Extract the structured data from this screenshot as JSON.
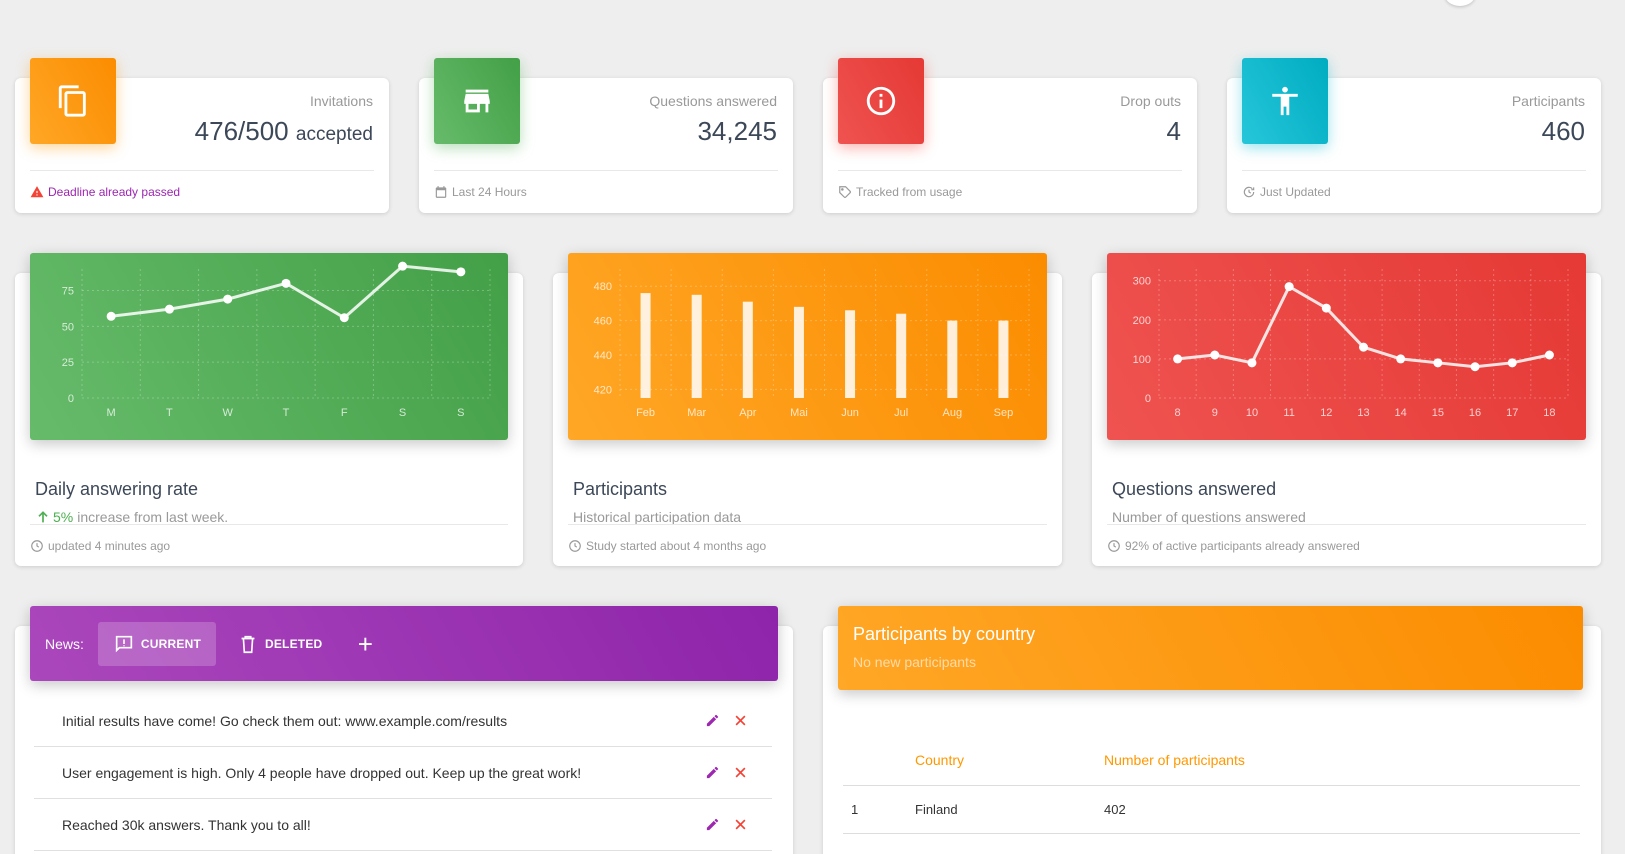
{
  "stats": [
    {
      "category": "Invitations",
      "value": "476/500",
      "unit": "accepted",
      "footer": "Deadline already passed",
      "color": "#fb8c00",
      "icon": "content-copy-icon"
    },
    {
      "category": "Questions answered",
      "value": "34,245",
      "unit": "",
      "footer": "Last 24 Hours",
      "color": "#43a047",
      "icon": "store-icon"
    },
    {
      "category": "Drop outs",
      "value": "4",
      "unit": "",
      "footer": "Tracked from usage",
      "color": "#e53935",
      "icon": "info-icon"
    },
    {
      "category": "Participants",
      "value": "460",
      "unit": "",
      "footer": "Just Updated",
      "color": "#00acc1",
      "icon": "accessibility-icon"
    }
  ],
  "charts": [
    {
      "title": "Daily answering rate",
      "subtitle_pct": "5%",
      "subtitle": "increase from last week.",
      "footer": "updated 4 minutes ago"
    },
    {
      "title": "Participants",
      "subtitle": "Historical participation data",
      "footer": "Study started about 4 months ago"
    },
    {
      "title": "Questions answered",
      "subtitle": "Number of questions answered",
      "footer": "92% of active participants already answered"
    }
  ],
  "chart_data": [
    {
      "type": "line",
      "categories": [
        "M",
        "T",
        "W",
        "T",
        "F",
        "S",
        "S"
      ],
      "values": [
        57,
        62,
        69,
        80,
        56,
        92,
        88
      ],
      "ylim": [
        0,
        90
      ],
      "yticks": [
        0,
        25,
        50,
        75
      ],
      "grid": true
    },
    {
      "type": "bar",
      "categories": [
        "Feb",
        "Mar",
        "Apr",
        "Mai",
        "Jun",
        "Jul",
        "Aug",
        "Sep"
      ],
      "values": [
        476,
        475,
        471,
        468,
        466,
        464,
        460,
        460
      ],
      "ylim": [
        415,
        490
      ],
      "yticks": [
        420,
        440,
        460,
        480
      ],
      "grid": true
    },
    {
      "type": "line",
      "categories": [
        "8",
        "9",
        "10",
        "11",
        "12",
        "13",
        "14",
        "15",
        "16",
        "17",
        "18"
      ],
      "values": [
        100,
        110,
        90,
        285,
        230,
        130,
        100,
        90,
        80,
        90,
        110
      ],
      "ylim": [
        0,
        330
      ],
      "yticks": [
        0,
        100,
        200,
        300
      ],
      "grid": true
    }
  ],
  "news": {
    "label": "News:",
    "tabs": [
      {
        "label": "CURRENT",
        "icon": "feedback-icon"
      },
      {
        "label": "DELETED",
        "icon": "trash-icon"
      }
    ],
    "add_label": "+",
    "items": [
      {
        "text": "Initial results have come! Go check them out: www.example.com/results"
      },
      {
        "text": "User engagement is high. Only 4 people have dropped out. Keep up the great work!"
      },
      {
        "text": "Reached 30k answers. Thank you to all!"
      }
    ],
    "edit_color": "#9c27b0",
    "delete_color": "#f44336"
  },
  "country": {
    "title": "Participants by country",
    "subtitle": "No new participants",
    "headers": [
      "Country",
      "Number of participants"
    ],
    "rows": [
      {
        "rank": "1",
        "country": "Finland",
        "count": "402"
      }
    ]
  }
}
